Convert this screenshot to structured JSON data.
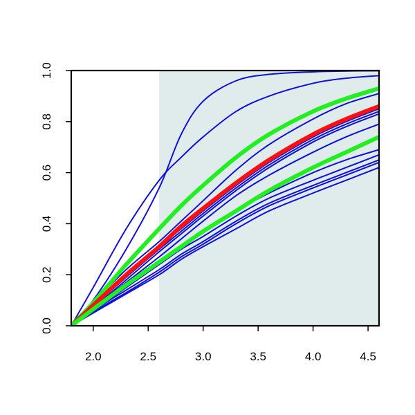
{
  "chart_data": {
    "type": "line",
    "title": "",
    "xlabel": "",
    "ylabel": "",
    "xlim": [
      1.8,
      4.6
    ],
    "ylim": [
      0,
      1
    ],
    "x_ticks": [
      "2.0",
      "2.5",
      "3.0",
      "3.5",
      "4.0",
      "4.5"
    ],
    "x_tick_values": [
      2.0,
      2.5,
      3.0,
      3.5,
      4.0,
      4.5
    ],
    "y_ticks": [
      "0.0",
      "0.2",
      "0.4",
      "0.6",
      "0.8",
      "1.0"
    ],
    "y_tick_values": [
      0.0,
      0.2,
      0.4,
      0.6,
      0.8,
      1.0
    ],
    "shaded_region": {
      "x_from": 2.6,
      "x_to": 4.6,
      "color": "#e0eceb"
    },
    "grid": false,
    "legend": "none",
    "colors": {
      "blue": "#1010d8",
      "red": "#ff1010",
      "green": "#22ee22",
      "axis": "#000000"
    },
    "series": [
      {
        "color": "blue",
        "width": "thin",
        "x": [
          1.8,
          2.0,
          2.3,
          2.6,
          2.8,
          3.0,
          3.3,
          3.6,
          4.0,
          4.3,
          4.6
        ],
        "y": [
          0.0,
          0.1,
          0.3,
          0.54,
          0.75,
          0.88,
          0.96,
          0.985,
          0.995,
          0.998,
          0.999
        ]
      },
      {
        "color": "blue",
        "width": "thin",
        "x": [
          1.8,
          2.0,
          2.3,
          2.6,
          2.8,
          3.0,
          3.3,
          3.6,
          4.0,
          4.3,
          4.6
        ],
        "y": [
          0.0,
          0.15,
          0.38,
          0.57,
          0.66,
          0.74,
          0.84,
          0.9,
          0.95,
          0.97,
          0.98
        ]
      },
      {
        "color": "blue",
        "width": "thin",
        "x": [
          1.8,
          2.0,
          2.3,
          2.6,
          2.8,
          3.0,
          3.3,
          3.6,
          4.0,
          4.3,
          4.6
        ],
        "y": [
          0.0,
          0.09,
          0.22,
          0.33,
          0.41,
          0.49,
          0.61,
          0.71,
          0.81,
          0.87,
          0.91
        ]
      },
      {
        "color": "blue",
        "width": "thin",
        "x": [
          1.8,
          2.0,
          2.3,
          2.6,
          2.8,
          3.0,
          3.3,
          3.6,
          4.0,
          4.3,
          4.6
        ],
        "y": [
          0.0,
          0.08,
          0.2,
          0.31,
          0.38,
          0.45,
          0.55,
          0.64,
          0.74,
          0.8,
          0.85
        ]
      },
      {
        "color": "blue",
        "width": "thin",
        "x": [
          1.8,
          2.0,
          2.3,
          2.6,
          2.8,
          3.0,
          3.3,
          3.6,
          4.0,
          4.3,
          4.6
        ],
        "y": [
          0.0,
          0.075,
          0.19,
          0.3,
          0.37,
          0.44,
          0.54,
          0.63,
          0.73,
          0.79,
          0.84
        ]
      },
      {
        "color": "blue",
        "width": "thin",
        "x": [
          1.8,
          2.0,
          2.3,
          2.6,
          2.8,
          3.0,
          3.3,
          3.6,
          4.0,
          4.3,
          4.6
        ],
        "y": [
          0.0,
          0.07,
          0.18,
          0.29,
          0.36,
          0.43,
          0.53,
          0.62,
          0.72,
          0.78,
          0.83
        ]
      },
      {
        "color": "blue",
        "width": "thin",
        "x": [
          1.8,
          2.0,
          2.3,
          2.6,
          2.8,
          3.0,
          3.3,
          3.6,
          4.0,
          4.3,
          4.6
        ],
        "y": [
          0.0,
          0.07,
          0.17,
          0.27,
          0.34,
          0.41,
          0.51,
          0.59,
          0.68,
          0.74,
          0.79
        ]
      },
      {
        "color": "blue",
        "width": "thin",
        "x": [
          1.8,
          2.0,
          2.3,
          2.6,
          2.8,
          3.0,
          3.3,
          3.6,
          4.0,
          4.3,
          4.6
        ],
        "y": [
          0.0,
          0.065,
          0.16,
          0.25,
          0.31,
          0.37,
          0.45,
          0.52,
          0.6,
          0.65,
          0.69
        ]
      },
      {
        "color": "blue",
        "width": "thin",
        "x": [
          1.8,
          2.0,
          2.3,
          2.6,
          2.8,
          3.0,
          3.3,
          3.6,
          4.0,
          4.3,
          4.6
        ],
        "y": [
          0.0,
          0.06,
          0.15,
          0.24,
          0.3,
          0.35,
          0.43,
          0.5,
          0.57,
          0.62,
          0.67
        ]
      },
      {
        "color": "blue",
        "width": "thin",
        "x": [
          1.8,
          2.0,
          2.3,
          2.6,
          2.8,
          3.0,
          3.3,
          3.6,
          4.0,
          4.3,
          4.6
        ],
        "y": [
          0.0,
          0.06,
          0.14,
          0.22,
          0.28,
          0.33,
          0.41,
          0.48,
          0.55,
          0.6,
          0.65
        ]
      },
      {
        "color": "blue",
        "width": "thin",
        "x": [
          1.8,
          2.0,
          2.3,
          2.6,
          2.8,
          3.0,
          3.3,
          3.6,
          4.0,
          4.3,
          4.6
        ],
        "y": [
          0.0,
          0.055,
          0.13,
          0.21,
          0.27,
          0.32,
          0.4,
          0.47,
          0.54,
          0.59,
          0.64
        ]
      },
      {
        "color": "blue",
        "width": "thin",
        "x": [
          1.8,
          2.0,
          2.3,
          2.6,
          2.8,
          3.0,
          3.3,
          3.6,
          4.0,
          4.3,
          4.6
        ],
        "y": [
          0.0,
          0.05,
          0.125,
          0.2,
          0.26,
          0.31,
          0.38,
          0.45,
          0.52,
          0.57,
          0.62
        ]
      },
      {
        "color": "green",
        "width": "thick",
        "x": [
          1.8,
          2.0,
          2.3,
          2.6,
          2.8,
          3.0,
          3.3,
          3.6,
          4.0,
          4.3,
          4.6
        ],
        "y": [
          0.0,
          0.09,
          0.24,
          0.38,
          0.47,
          0.55,
          0.66,
          0.75,
          0.84,
          0.89,
          0.93
        ]
      },
      {
        "color": "red",
        "width": "thick",
        "x": [
          1.8,
          2.0,
          2.3,
          2.6,
          2.8,
          3.0,
          3.3,
          3.6,
          4.0,
          4.3,
          4.6
        ],
        "y": [
          0.0,
          0.08,
          0.2,
          0.31,
          0.39,
          0.46,
          0.56,
          0.65,
          0.75,
          0.81,
          0.86
        ]
      },
      {
        "color": "green",
        "width": "thick",
        "x": [
          1.8,
          2.0,
          2.3,
          2.6,
          2.8,
          3.0,
          3.3,
          3.6,
          4.0,
          4.3,
          4.6
        ],
        "y": [
          0.0,
          0.065,
          0.16,
          0.25,
          0.31,
          0.37,
          0.45,
          0.53,
          0.62,
          0.68,
          0.74
        ]
      }
    ]
  }
}
